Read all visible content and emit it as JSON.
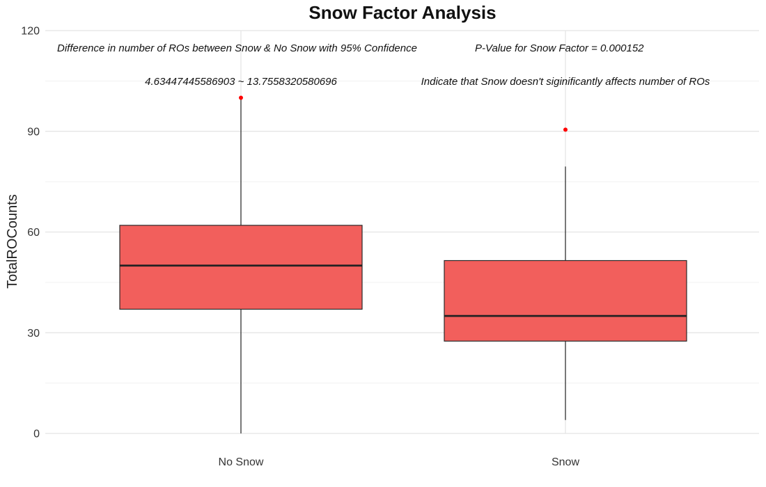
{
  "chart_data": {
    "type": "box",
    "title": "Snow Factor Analysis",
    "xlabel": "",
    "ylabel": "TotalROCounts",
    "ylim": [
      0,
      120
    ],
    "yticks": [
      0,
      30,
      60,
      90,
      120
    ],
    "grid": true,
    "fill_color": "#f25f5c",
    "outlier_color": "#ff0000",
    "categories": [
      "No Snow",
      "Snow"
    ],
    "boxes": [
      {
        "category": "No Snow",
        "whisker_low": 0,
        "q1": 37,
        "median": 50,
        "q3": 62,
        "whisker_high": 100,
        "outliers": [
          100
        ]
      },
      {
        "category": "Snow",
        "whisker_low": 4,
        "q1": 27.5,
        "median": 35,
        "q3": 51.5,
        "whisker_high": 79.5,
        "outliers": [
          90.5
        ]
      }
    ],
    "annotations": [
      "Difference in number of ROs between Snow & No Snow with 95% Confidence",
      "P-Value for Snow Factor =  0.000152",
      "4.63447445586903  ~  13.7558320580696",
      "Indicate that Snow doesn't siginificantly affects number of ROs"
    ]
  }
}
